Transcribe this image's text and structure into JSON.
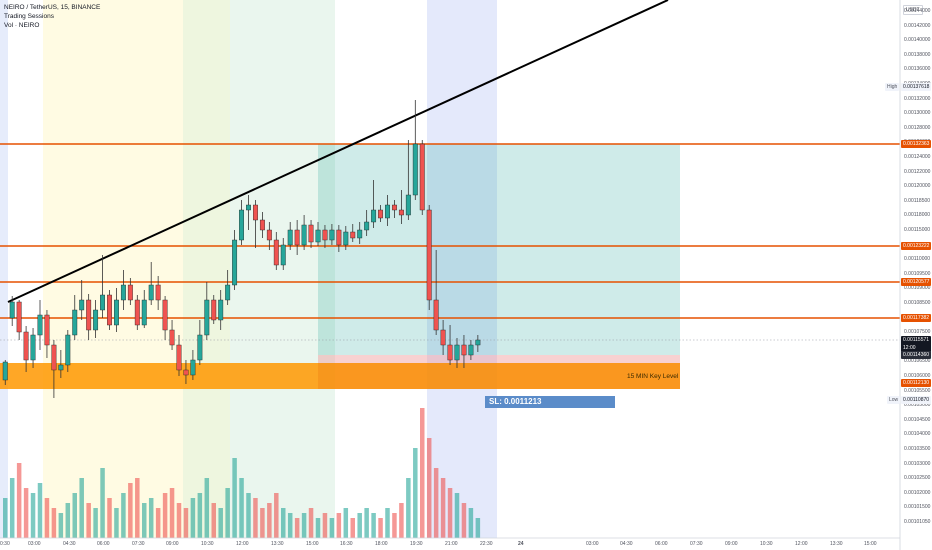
{
  "legend": {
    "symbol": "NEIRO / TetherUS, 15, BINANCE",
    "indicator1": "Trading Sessions",
    "indicator2": "Vol · NEIRO"
  },
  "price_axis": {
    "currency": "USDT",
    "labels": [
      "0.00144000",
      "0.00142000",
      "0.00140000",
      "0.00138000",
      "0.00136000",
      "0.00134000",
      "0.00132000",
      "0.00130000",
      "0.00128000",
      "0.00126000",
      "0.00124000",
      "0.00122000",
      "0.00120000",
      "0.00118500",
      "0.00118000",
      "0.00115000",
      "0.00112500",
      "0.00110000",
      "0.00109500",
      "0.00109000",
      "0.00108500",
      "0.00108000",
      "0.00107500",
      "0.00107000",
      "0.00106500",
      "0.00106000",
      "0.00105500",
      "0.00105000",
      "0.00104500",
      "0.00104000",
      "0.00103500",
      "0.00103000",
      "0.00102500",
      "0.00102000",
      "0.00101500",
      "0.00101050"
    ],
    "high_tag": "High",
    "high_value": "0.00137618",
    "low_tag": "Low",
    "low_value": "0.00110870",
    "level_values": [
      "0.00132363",
      "0.00123222",
      "0.00120577",
      "0.00117382"
    ],
    "current_price": "0.00115571",
    "current_countdown": "12:00",
    "pink_value": "0.00114360",
    "orange_value": "0.00112130"
  },
  "time_axis": {
    "labels": [
      "0:30",
      "03:00",
      "04:30",
      "06:00",
      "07:30",
      "09:00",
      "10:30",
      "12:00",
      "13:30",
      "15:00",
      "16:30",
      "18:00",
      "19:30",
      "21:00",
      "22:30",
      "24",
      "03:00",
      "04:30",
      "06:00",
      "07:30",
      "09:00",
      "10:30",
      "12:00",
      "13:30",
      "15:00"
    ]
  },
  "annotations": {
    "key_level_label": "15 MIN Key Level",
    "stop_loss_label": "SL: 0.0011213"
  },
  "colors": {
    "up": "#26a69a",
    "down": "#ef5350",
    "level_line": "#e65100",
    "key_zone": "#ff9800",
    "target_zone": "#9fd8d4",
    "stop_zone": "#f8c3c3",
    "trendline": "#000000",
    "sl_box": "#5b8cc9"
  }
}
